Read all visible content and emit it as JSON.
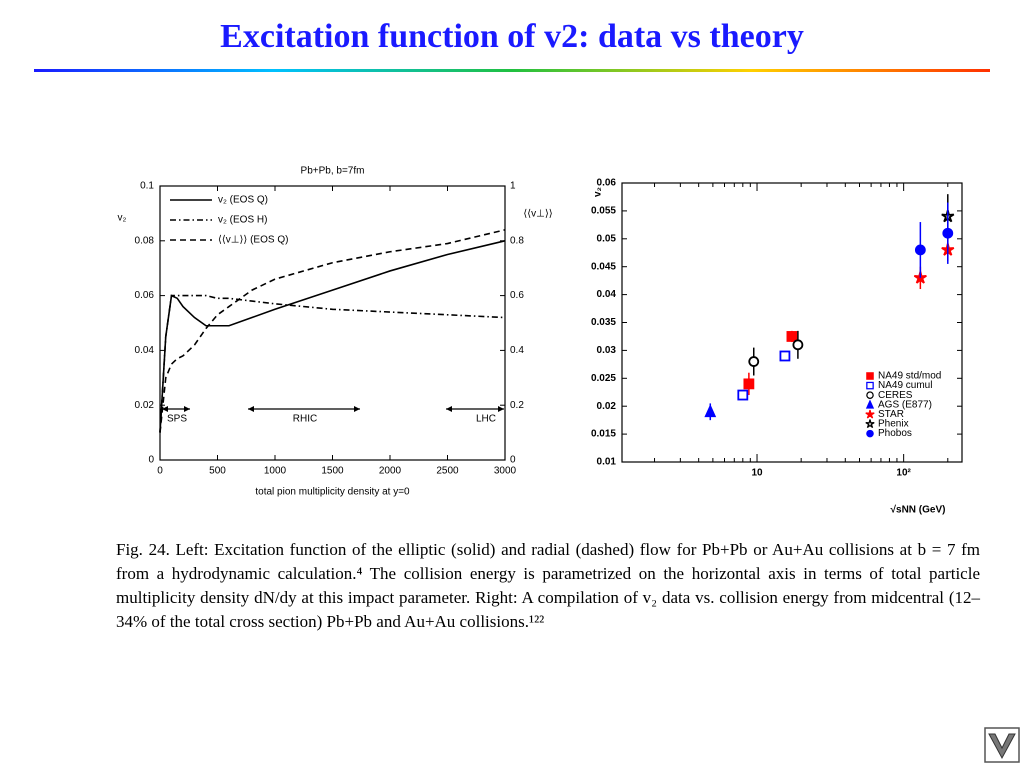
{
  "title": "Excitation function of v2: data vs theory",
  "chart_data": [
    {
      "type": "line",
      "title": "Pb+Pb, b=7fm",
      "x_label": "total pion multiplicity density at y=0",
      "y_label": "v₂",
      "y2_label": "⟨⟨v⊥⟩⟩",
      "x": [
        0,
        50,
        100,
        150,
        200,
        300,
        400,
        500,
        600,
        800,
        1000,
        1500,
        2000,
        2500,
        3000
      ],
      "series": [
        {
          "name": "v₂ (EOS Q)",
          "color": "#000000",
          "style": "solid",
          "values": [
            0.01,
            0.045,
            0.06,
            0.059,
            0.056,
            0.052,
            0.049,
            0.049,
            0.049,
            0.052,
            0.055,
            0.062,
            0.069,
            0.075,
            0.08
          ]
        },
        {
          "name": "v₂ (EOS H)",
          "color": "#000000",
          "style": "dashdot",
          "values": [
            0.01,
            0.045,
            0.06,
            0.06,
            0.06,
            0.06,
            0.06,
            0.059,
            0.059,
            0.058,
            0.057,
            0.055,
            0.054,
            0.053,
            0.052
          ]
        },
        {
          "name": "⟨⟨v⊥⟩⟩ (EOS Q)",
          "color": "#000000",
          "style": "dashed",
          "axis": "y2",
          "values": [
            0.1,
            0.3,
            0.35,
            0.37,
            0.38,
            0.42,
            0.48,
            0.53,
            0.56,
            0.62,
            0.66,
            0.72,
            0.76,
            0.79,
            0.84
          ]
        }
      ],
      "xlim": [
        0,
        3000
      ],
      "xticks": [
        0,
        500,
        1000,
        1500,
        2000,
        2500,
        3000
      ],
      "ylim": [
        0,
        0.1
      ],
      "yticks": [
        0,
        0.02,
        0.04,
        0.06,
        0.08,
        0.1
      ],
      "y2lim": [
        0,
        1
      ],
      "y2ticks": [
        0,
        0.2,
        0.4,
        0.6,
        0.8,
        1
      ],
      "annotations": [
        "SPS",
        "RHIC",
        "LHC"
      ],
      "legend": "upper left"
    },
    {
      "type": "scatter",
      "y_label": "v₂",
      "x_label": "√sNN (GeV)",
      "log_x": true,
      "xlim": [
        1.2,
        250
      ],
      "xticks": [
        10,
        {
          "value": 100,
          "label": "10²"
        }
      ],
      "ylim": [
        0.01,
        0.06
      ],
      "yticks": [
        0.01,
        0.015,
        0.02,
        0.025,
        0.03,
        0.035,
        0.04,
        0.045,
        0.05,
        0.055,
        0.06
      ],
      "legend": "lower right",
      "series": [
        {
          "name": "NA49 std/mod",
          "color": "#ff0000",
          "marker": "square",
          "x": [
            8.8,
            17.3
          ],
          "values": [
            0.024,
            0.0325
          ],
          "errors": [
            0.002,
            0.001
          ]
        },
        {
          "name": "NA49 cumul",
          "color": "#0000ff",
          "marker": "open-square",
          "x": [
            8,
            15.5
          ],
          "values": [
            0.022,
            0.029
          ],
          "errors": [
            0.0008,
            0.0008
          ]
        },
        {
          "name": "CERES",
          "color": "#000000",
          "marker": "open-circle",
          "x": [
            9.5,
            19
          ],
          "values": [
            0.028,
            0.031
          ],
          "errors": [
            0.0025,
            0.0025
          ]
        },
        {
          "name": "AGS (E877)",
          "color": "#0000ff",
          "marker": "triangle",
          "x": [
            4.8
          ],
          "values": [
            0.019
          ],
          "errors": [
            0.0015
          ]
        },
        {
          "name": "STAR",
          "color": "#ff0000",
          "marker": "star",
          "x": [
            130,
            200
          ],
          "values": [
            0.043,
            0.048
          ],
          "errors": [
            0.002,
            0.002
          ]
        },
        {
          "name": "Phenix",
          "color": "#000000",
          "marker": "open-star",
          "x": [
            200
          ],
          "values": [
            0.054
          ],
          "errors": [
            0.004
          ]
        },
        {
          "name": "Phobos",
          "color": "#0000ff",
          "marker": "circle",
          "x": [
            130,
            200
          ],
          "values": [
            0.048,
            0.051
          ],
          "errors": [
            0.005,
            0.0055
          ]
        }
      ]
    }
  ],
  "caption": "Fig. 24.  Left: Excitation function of the elliptic (solid) and radial (dashed) flow for Pb+Pb or Au+Au collisions at b = 7 fm from a hydrodynamic calculation.⁴ The collision energy is parametrized on the horizontal axis in terms of total particle multiplicity density dN/dy at this impact parameter. Right: A compilation of v₂ data vs. collision energy from midcentral (12–34% of the total cross section) Pb+Pb and Au+Au collisions.¹²²"
}
